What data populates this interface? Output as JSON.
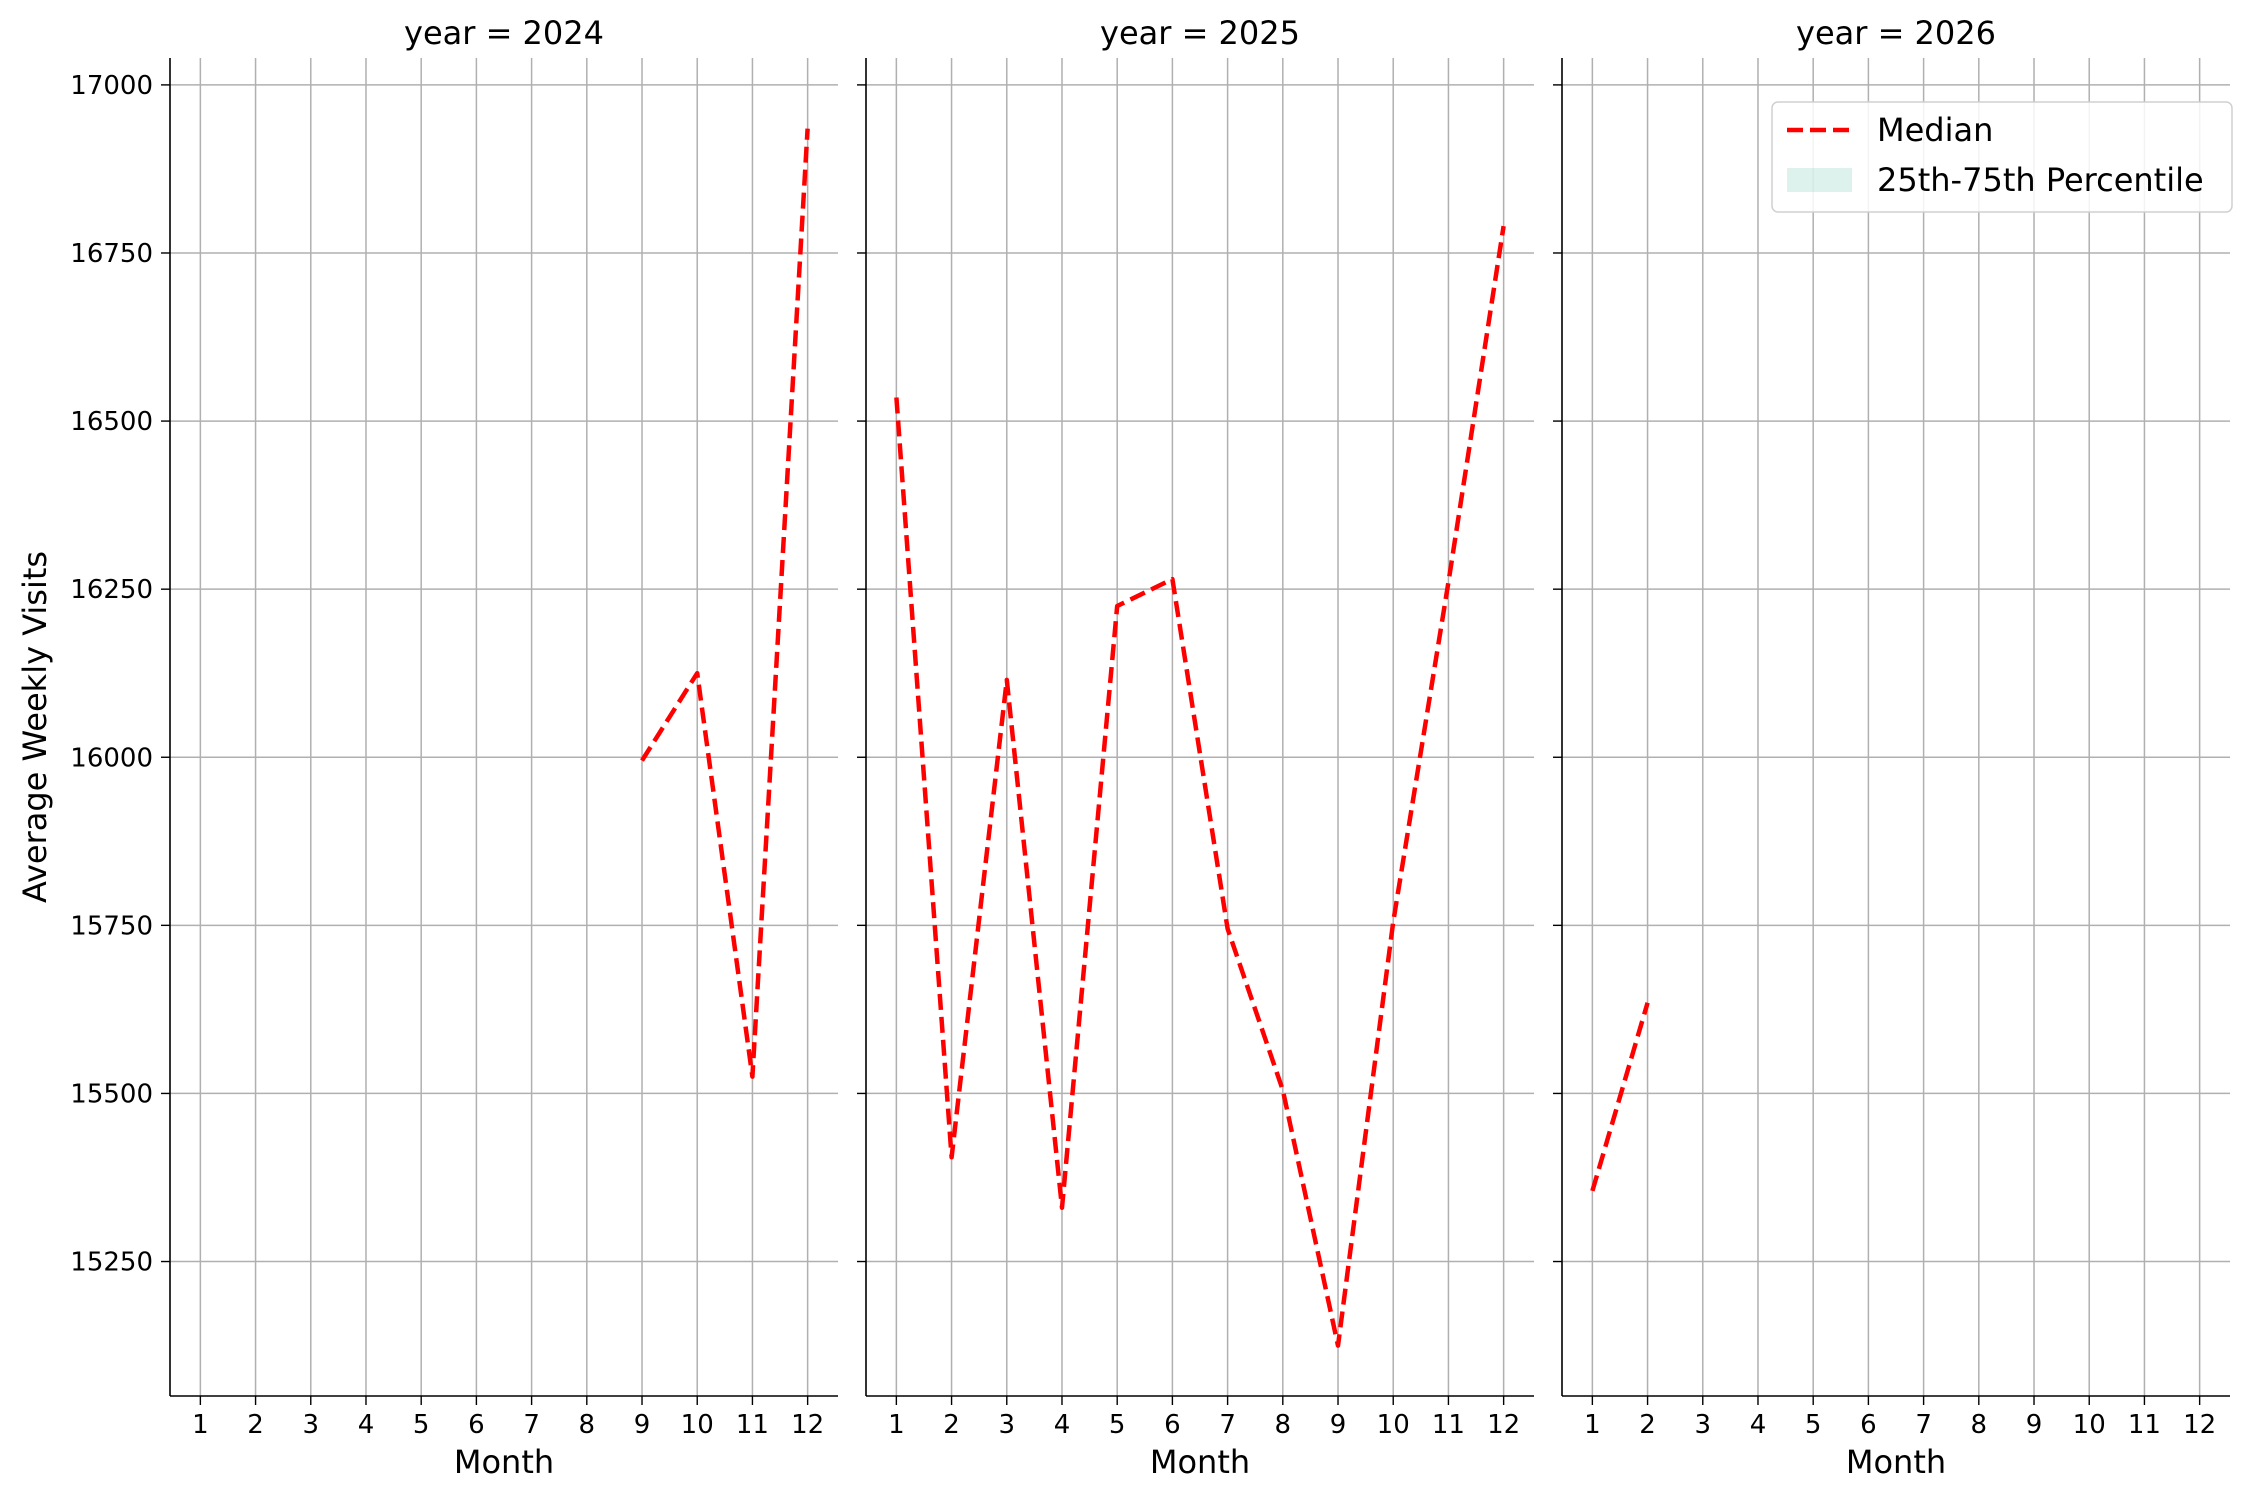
{
  "chart_data": {
    "type": "line",
    "ylabel": "Average Weekly Visits",
    "ylim": [
      15050,
      17040
    ],
    "yticks": [
      15250,
      15500,
      15750,
      16000,
      16250,
      16500,
      16750,
      17000
    ],
    "xlim": [
      0.45,
      12.55
    ],
    "xticks": [
      1,
      2,
      3,
      4,
      5,
      6,
      7,
      8,
      9,
      10,
      11,
      12
    ],
    "grid": true,
    "legend": {
      "placement": "top-right",
      "entries": [
        {
          "label": "Median",
          "kind": "line",
          "color": "#ff0000",
          "style": "dashed"
        },
        {
          "label": "25th-75th Percentile",
          "kind": "band",
          "color": "#8fd3c1"
        }
      ]
    },
    "panels": [
      {
        "title": "year = 2024",
        "xlabel": "Month",
        "series": [
          {
            "name": "Median",
            "color": "#ff0000",
            "x": [
              9,
              10,
              11,
              12
            ],
            "y": [
              15995,
              16125,
              15525,
              16935
            ]
          }
        ]
      },
      {
        "title": "year = 2025",
        "xlabel": "Month",
        "series": [
          {
            "name": "Median",
            "color": "#ff0000",
            "x": [
              1,
              2,
              3,
              4,
              5,
              6,
              7,
              8,
              9,
              10,
              11,
              12
            ],
            "y": [
              16535,
              15405,
              16115,
              15330,
              16225,
              16265,
              15745,
              15505,
              15125,
              15755,
              16260,
              16790
            ]
          }
        ]
      },
      {
        "title": "year = 2026",
        "xlabel": "Month",
        "series": [
          {
            "name": "Median",
            "color": "#ff0000",
            "x": [
              1,
              2
            ],
            "y": [
              15355,
              15635
            ]
          }
        ]
      }
    ]
  }
}
